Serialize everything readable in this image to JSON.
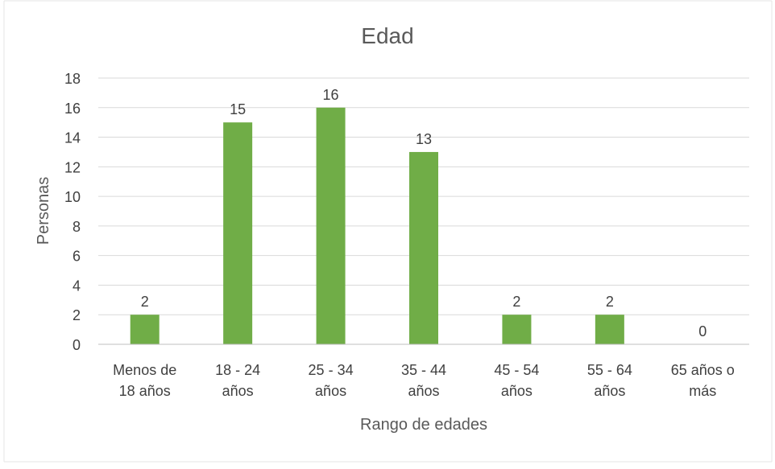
{
  "chart_data": {
    "type": "bar",
    "title": "Edad",
    "xlabel": "Rango de edades",
    "ylabel": "Personas",
    "categories": [
      [
        "Menos de",
        "18 años"
      ],
      [
        "18 - 24",
        "años"
      ],
      [
        "25 - 34",
        "años"
      ],
      [
        "35 - 44",
        "años"
      ],
      [
        "45 - 54",
        "años"
      ],
      [
        "55 - 64",
        "años"
      ],
      [
        "65 años o",
        "más"
      ]
    ],
    "values": [
      2,
      15,
      16,
      13,
      2,
      2,
      0
    ],
    "ylim": [
      0,
      18
    ],
    "yticks": [
      0,
      2,
      4,
      6,
      8,
      10,
      12,
      14,
      16,
      18
    ],
    "grid": true,
    "legend": "none",
    "colors": {
      "bar": "#70ad47",
      "grid": "#d9d9d9",
      "text": "#404040",
      "title": "#595959"
    }
  }
}
